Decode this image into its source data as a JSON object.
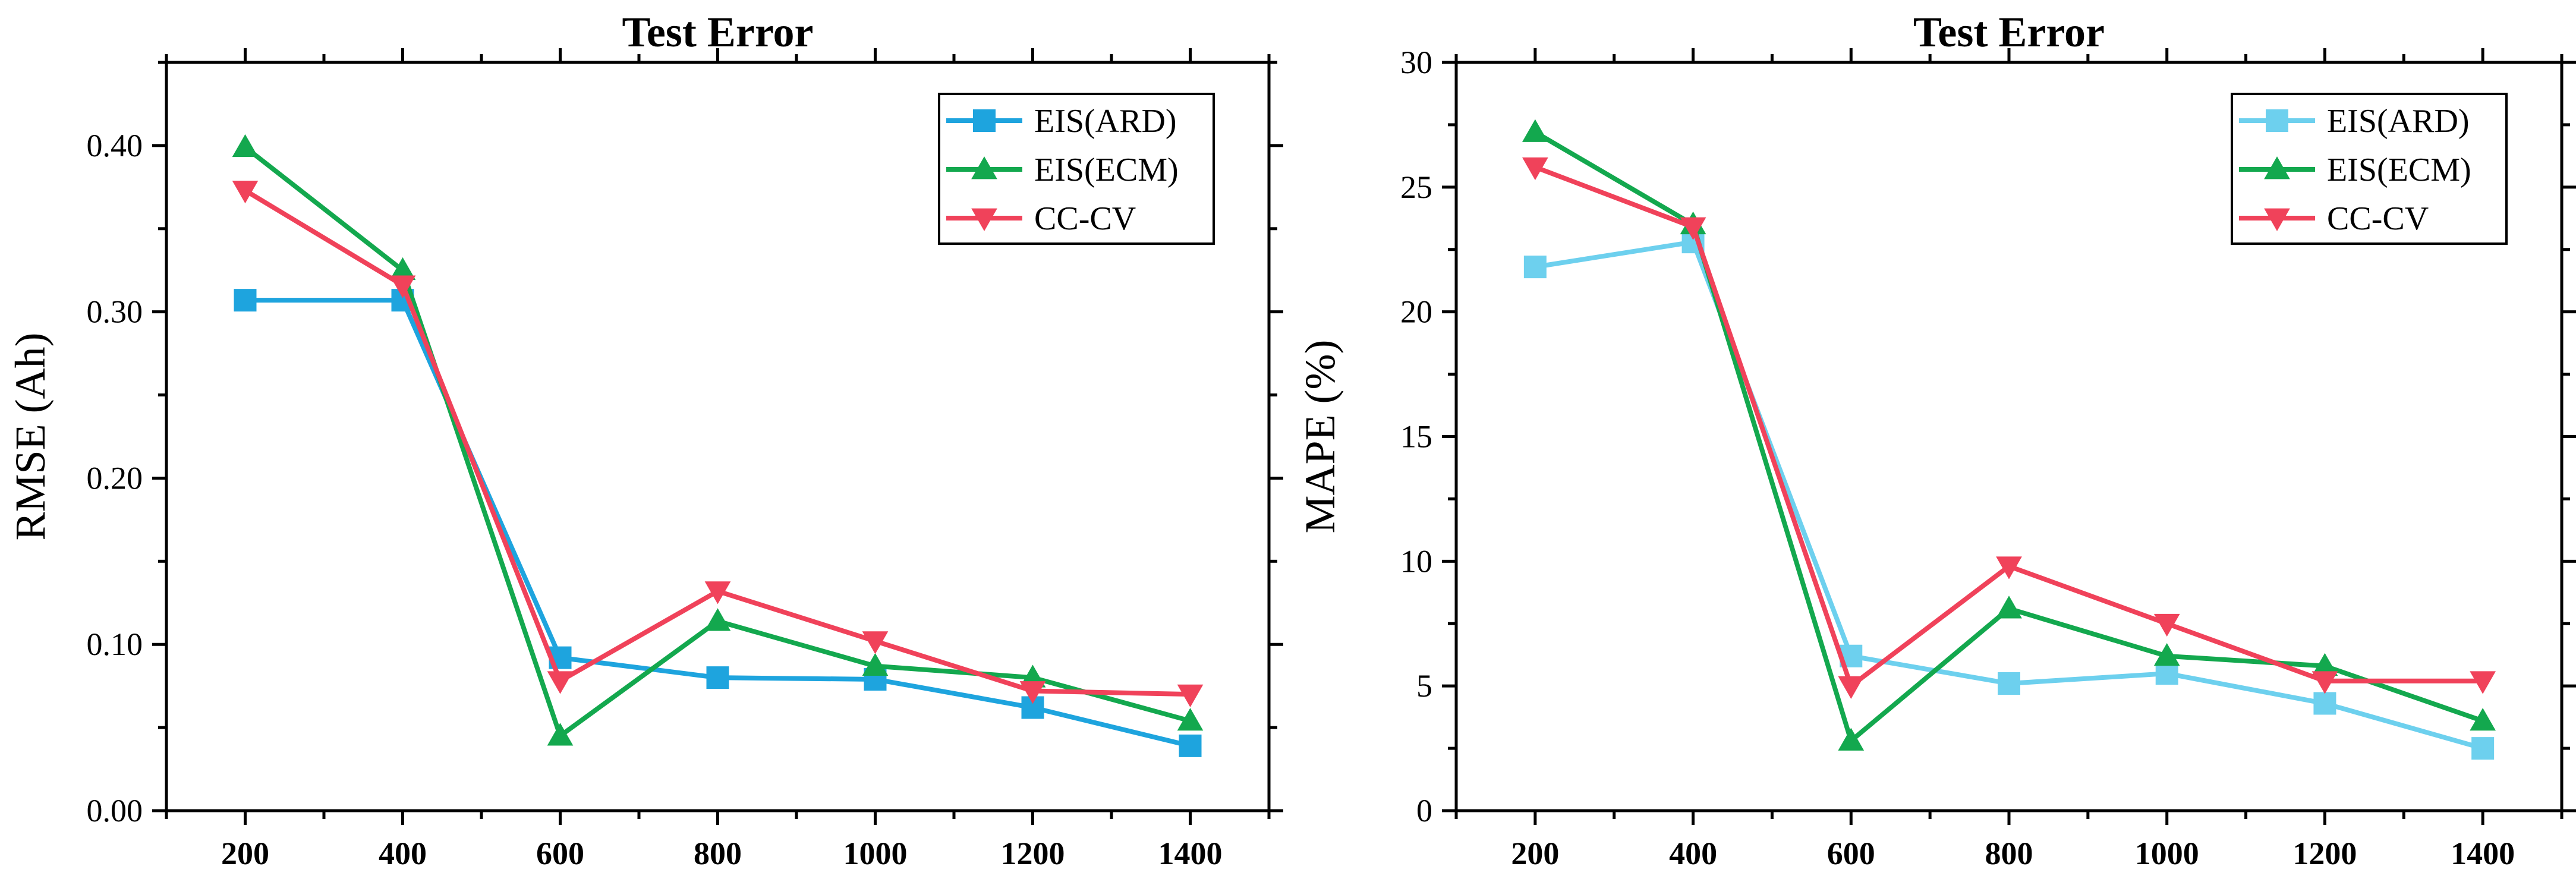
{
  "chart_data": [
    {
      "type": "line",
      "title": "Test Error",
      "xlabel": "",
      "ylabel": "RMSE (Ah)",
      "x": [
        200,
        400,
        600,
        800,
        1000,
        1200,
        1400
      ],
      "xlim": [
        100,
        1500
      ],
      "xticks": [
        "200",
        "400",
        "600",
        "800",
        "1000",
        "1200",
        "1400"
      ],
      "ylim": [
        0,
        0.45
      ],
      "yticks": [
        0.0,
        0.1,
        0.2,
        0.3,
        0.4
      ],
      "yticklabels": [
        "0.00",
        "0.10",
        "0.20",
        "0.30",
        "0.40"
      ],
      "legend_position": "top-right",
      "series": [
        {
          "name": "EIS(ARD)",
          "marker": "square",
          "color": "#1ea4de",
          "values": [
            0.307,
            0.307,
            0.092,
            0.08,
            0.079,
            0.062,
            0.039
          ]
        },
        {
          "name": "EIS(ECM)",
          "marker": "triangle-up",
          "color": "#13a84e",
          "values": [
            0.399,
            0.325,
            0.045,
            0.114,
            0.087,
            0.08,
            0.054
          ]
        },
        {
          "name": "CC-CV",
          "marker": "triangle-down",
          "color": "#f0425a",
          "values": [
            0.373,
            0.316,
            0.078,
            0.132,
            0.102,
            0.072,
            0.07
          ]
        }
      ]
    },
    {
      "type": "line",
      "title": "Test Error",
      "xlabel": "",
      "ylabel": "MAPE (%)",
      "x": [
        200,
        400,
        600,
        800,
        1000,
        1200,
        1400
      ],
      "xlim": [
        100,
        1500
      ],
      "xticks": [
        "200",
        "400",
        "600",
        "800",
        "1000",
        "1200",
        "1400"
      ],
      "ylim": [
        0,
        30
      ],
      "yticks": [
        0,
        5,
        10,
        15,
        20,
        25,
        30
      ],
      "yticklabels": [
        "0",
        "5",
        "10",
        "15",
        "20",
        "25",
        "30"
      ],
      "legend_position": "top-right",
      "series": [
        {
          "name": "EIS(ARD)",
          "marker": "square",
          "color": "#6dd0ee",
          "values": [
            21.8,
            22.8,
            6.2,
            5.1,
            5.5,
            4.3,
            2.5
          ]
        },
        {
          "name": "EIS(ECM)",
          "marker": "triangle-up",
          "color": "#13a84e",
          "values": [
            27.2,
            23.5,
            2.8,
            8.1,
            6.2,
            5.8,
            3.6
          ]
        },
        {
          "name": "CC-CV",
          "marker": "triangle-down",
          "color": "#f0425a",
          "values": [
            25.8,
            23.4,
            5.0,
            9.8,
            7.5,
            5.2,
            5.2
          ]
        }
      ]
    }
  ]
}
